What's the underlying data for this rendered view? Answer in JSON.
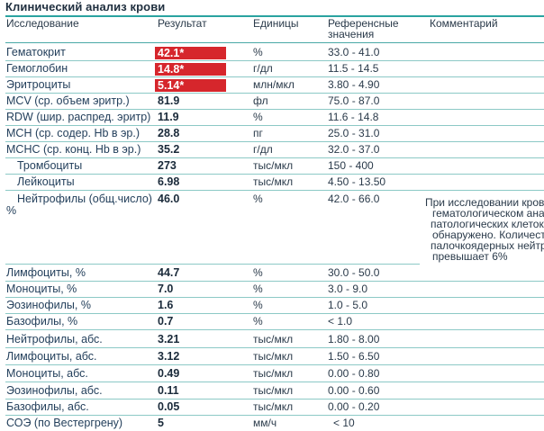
{
  "title": "Клинический анализ крови",
  "headers": {
    "test": "Исследование",
    "result": "Результат",
    "units": "Единицы",
    "reference_line1": "Референсные",
    "reference_line2": "значения",
    "comment": "Комментарий"
  },
  "colors": {
    "accent": "#2aa3a0",
    "flag": "#d6262c"
  },
  "rows": [
    {
      "name": "Гематокрит",
      "result": "42.1*",
      "unit": "%",
      "ref": "33.0 - 41.0",
      "flag": true
    },
    {
      "name": "Гемоглобин",
      "result": "14.8*",
      "unit": "г/дл",
      "ref": "11.5 - 14.5",
      "flag": true
    },
    {
      "name": "Эритроциты",
      "result": "5.14*",
      "unit": "млн/мкл",
      "ref": "3.80 - 4.90",
      "flag": true
    },
    {
      "name": "MCV (ср. объем эритр.)",
      "result": "81.9",
      "unit": "фл",
      "ref": "75.0 - 87.0",
      "flag": false
    },
    {
      "name": "RDW (шир. распред. эритр)",
      "result": "11.9",
      "unit": "%",
      "ref": "11.6 - 14.8",
      "flag": false
    },
    {
      "name": "MCH (ср. содер. Hb в эр.)",
      "result": "28.8",
      "unit": "пг",
      "ref": "25.0 - 31.0",
      "flag": false
    },
    {
      "name": "MCHC (ср. конц. Hb в эр.)",
      "result": "35.2",
      "unit": "г/дл",
      "ref": "32.0 - 37.0",
      "flag": false
    },
    {
      "name": "Тромбоциты",
      "result": "273",
      "unit": "тыс/мкл",
      "ref": "150 - 400",
      "flag": false
    },
    {
      "name": "Лейкоциты",
      "result": "6.98",
      "unit": "тыс/мкл",
      "ref": "4.50 - 13.50",
      "flag": false
    },
    {
      "name_line1": "Нейтрофилы (общ.число)",
      "name_line2": "%",
      "result": "46.0",
      "unit": "%",
      "ref": "42.0 - 66.0",
      "flag": false,
      "comment_lines": [
        "При исследовании кров",
        "гематологическом анал",
        "патологических клеток",
        "обнаружено. Количест",
        "палочкоядерных нейтр",
        "превышает 6%"
      ]
    },
    {
      "name": "Лимфоциты, %",
      "result": "44.7",
      "unit": "%",
      "ref": "30.0 - 50.0",
      "flag": false
    },
    {
      "name": "Моноциты, %",
      "result": "7.0",
      "unit": "%",
      "ref": "3.0 - 9.0",
      "flag": false
    },
    {
      "name": "Эозинофилы, %",
      "result": "1.6",
      "unit": "%",
      "ref": "1.0 - 5.0",
      "flag": false
    },
    {
      "name": "Базофилы, %",
      "result": "0.7",
      "unit": "%",
      "ref": "< 1.0",
      "flag": false
    },
    {
      "name": "Нейтрофилы, абс.",
      "result": "3.21",
      "unit": "тыс/мкл",
      "ref": "1.80 - 8.00",
      "flag": false
    },
    {
      "name": "Лимфоциты, абс.",
      "result": "3.12",
      "unit": "тыс/мкл",
      "ref": "1.50 - 6.50",
      "flag": false
    },
    {
      "name": "Моноциты, абс.",
      "result": "0.49",
      "unit": "тыс/мкл",
      "ref": "0.00 - 0.80",
      "flag": false
    },
    {
      "name": "Эозинофилы, абс.",
      "result": "0.11",
      "unit": "тыс/мкл",
      "ref": "0.00 - 0.60",
      "flag": false
    },
    {
      "name": "Базофилы, абс.",
      "result": "0.05",
      "unit": "тыс/мкл",
      "ref": "0.00 - 0.20",
      "flag": false
    },
    {
      "name": "СОЭ (по Вестергрену)",
      "result": "5",
      "unit": "мм/ч",
      "ref": "< 10",
      "flag": false
    }
  ]
}
